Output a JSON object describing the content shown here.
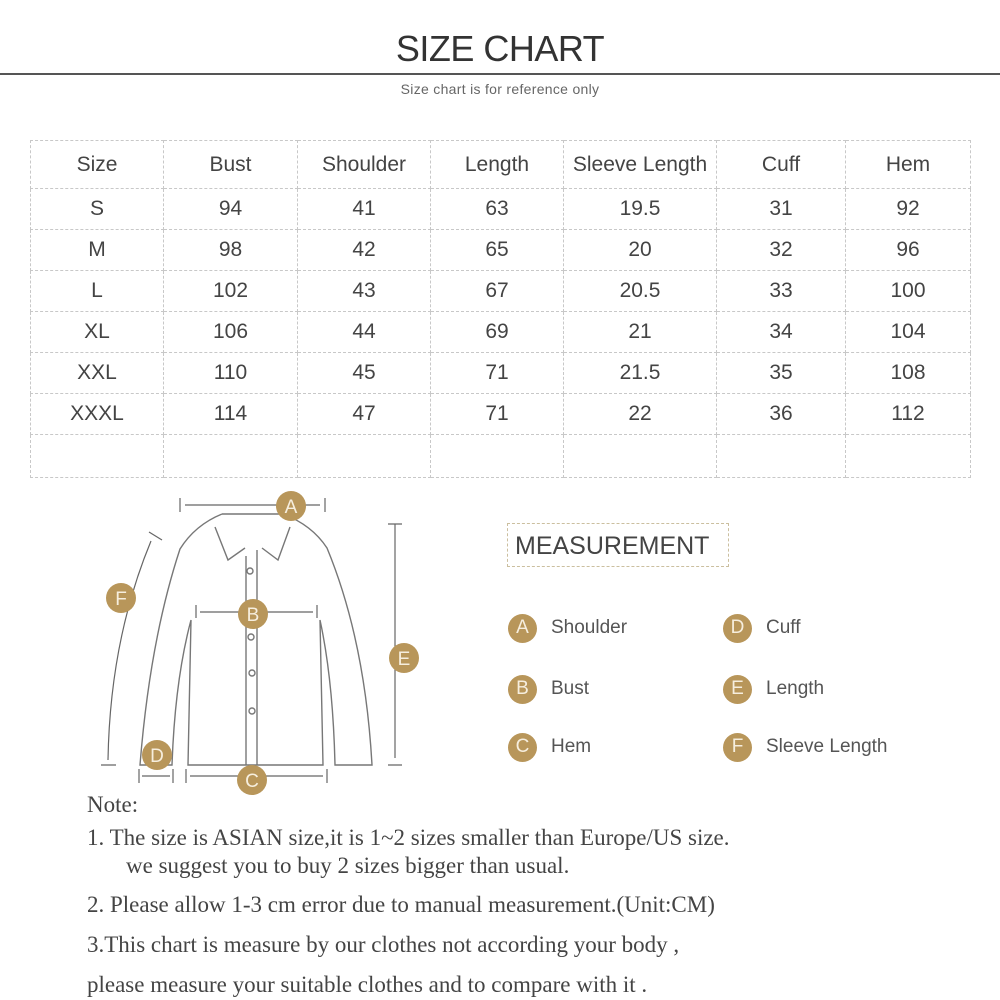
{
  "header": {
    "title": "SIZE CHART",
    "subtitle": "Size chart is for reference only"
  },
  "table": {
    "headers": [
      "Size",
      "Bust",
      "Shoulder",
      "Length",
      "Sleeve Length",
      "Cuff",
      "Hem"
    ],
    "rows": [
      [
        "S",
        "94",
        "41",
        "63",
        "19.5",
        "31",
        "92"
      ],
      [
        "M",
        "98",
        "42",
        "65",
        "20",
        "32",
        "96"
      ],
      [
        "L",
        "102",
        "43",
        "67",
        "20.5",
        "33",
        "100"
      ],
      [
        "XL",
        "106",
        "44",
        "69",
        "21",
        "34",
        "104"
      ],
      [
        "XXL",
        "110",
        "45",
        "71",
        "21.5",
        "35",
        "108"
      ],
      [
        "XXXL",
        "114",
        "47",
        "71",
        "22",
        "36",
        "112"
      ]
    ]
  },
  "diagram": {
    "badge_color": "#b8965a",
    "markers": [
      "A",
      "B",
      "C",
      "D",
      "E",
      "F"
    ]
  },
  "measurement": {
    "title": "MEASUREMENT",
    "items": [
      {
        "letter": "A",
        "label": "Shoulder"
      },
      {
        "letter": "B",
        "label": "Bust"
      },
      {
        "letter": "C",
        "label": "Hem"
      },
      {
        "letter": "D",
        "label": "Cuff"
      },
      {
        "letter": "E",
        "label": "Length"
      },
      {
        "letter": "F",
        "label": "Sleeve Length"
      }
    ]
  },
  "notes": {
    "heading": "Note:",
    "line1a": "1.  The size is ASIAN size,it is 1~2 sizes smaller than Europe/US size.",
    "line1b": "we suggest you to buy 2 sizes bigger than usual.",
    "line2": "2.  Please allow 1-3 cm error due to manual measurement.(Unit:CM)",
    "line3a": "3.This chart is measure by our clothes not according your body ,",
    "line3b": "please measure your suitable clothes and to compare with it ."
  }
}
